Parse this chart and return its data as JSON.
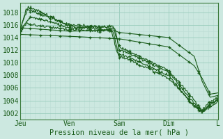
{
  "xlabel": "Pression niveau de la mer( hPa )",
  "bg_color": "#cce8e0",
  "grid_major_color": "#99ccbb",
  "grid_minor_color": "#bbddd5",
  "line_color": "#1a5c1a",
  "ylim": [
    1001.0,
    1019.5
  ],
  "yticks": [
    1002,
    1004,
    1006,
    1008,
    1010,
    1012,
    1014,
    1016,
    1018
  ],
  "xlim": [
    0,
    100
  ],
  "xtick_labels": [
    "Jeu",
    "Ven",
    "Sam",
    "Dim",
    "L"
  ],
  "xtick_positions": [
    0,
    25,
    50,
    75,
    100
  ],
  "series": [
    {
      "points": [
        [
          0,
          1015.2
        ],
        [
          3,
          1018.5
        ],
        [
          8,
          1018.0
        ],
        [
          25,
          1016.0
        ],
        [
          48,
          1015.5
        ],
        [
          50,
          1012.0
        ],
        [
          55,
          1011.5
        ],
        [
          75,
          1008.5
        ],
        [
          88,
          1003.5
        ],
        [
          92,
          1002.2
        ],
        [
          96,
          1003.5
        ],
        [
          100,
          1004.0
        ]
      ],
      "noisy": true
    },
    {
      "points": [
        [
          0,
          1015.5
        ],
        [
          4,
          1018.8
        ],
        [
          9,
          1018.3
        ],
        [
          25,
          1015.8
        ],
        [
          46,
          1015.2
        ],
        [
          49,
          1011.5
        ],
        [
          54,
          1011.0
        ],
        [
          75,
          1008.0
        ],
        [
          88,
          1003.0
        ],
        [
          92,
          1002.0
        ],
        [
          96,
          1003.2
        ],
        [
          100,
          1004.2
        ]
      ],
      "noisy": true
    },
    {
      "points": [
        [
          0,
          1015.0
        ],
        [
          5,
          1017.2
        ],
        [
          12,
          1016.8
        ],
        [
          25,
          1015.5
        ],
        [
          47,
          1015.8
        ],
        [
          50,
          1012.5
        ],
        [
          55,
          1011.8
        ],
        [
          75,
          1008.8
        ],
        [
          88,
          1004.0
        ],
        [
          92,
          1002.5
        ],
        [
          96,
          1003.8
        ],
        [
          100,
          1004.5
        ]
      ],
      "noisy": true
    },
    {
      "points": [
        [
          0,
          1015.3
        ],
        [
          3,
          1016.2
        ],
        [
          6,
          1016.0
        ],
        [
          25,
          1015.2
        ],
        [
          47,
          1015.0
        ],
        [
          50,
          1011.0
        ],
        [
          55,
          1010.5
        ],
        [
          75,
          1007.5
        ],
        [
          88,
          1003.2
        ],
        [
          92,
          1002.3
        ],
        [
          96,
          1003.0
        ],
        [
          100,
          1003.8
        ]
      ],
      "noisy": true
    },
    {
      "points": [
        [
          0,
          1015.0
        ],
        [
          2,
          1015.5
        ],
        [
          25,
          1015.0
        ],
        [
          47,
          1015.2
        ],
        [
          50,
          1014.8
        ],
        [
          75,
          1014.0
        ],
        [
          88,
          1011.0
        ],
        [
          92,
          1007.0
        ],
        [
          96,
          1004.5
        ],
        [
          100,
          1004.8
        ]
      ],
      "noisy": false
    },
    {
      "points": [
        [
          0,
          1014.5
        ],
        [
          25,
          1014.2
        ],
        [
          50,
          1013.8
        ],
        [
          75,
          1012.5
        ],
        [
          88,
          1009.5
        ],
        [
          92,
          1007.5
        ],
        [
          96,
          1005.0
        ],
        [
          100,
          1005.2
        ]
      ],
      "noisy": false
    }
  ]
}
